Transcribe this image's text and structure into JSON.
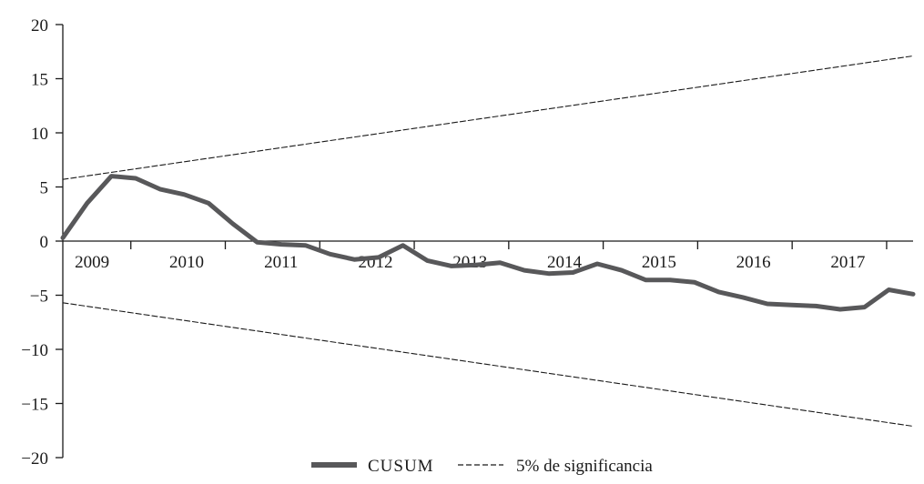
{
  "chart_data": {
    "type": "line",
    "title": "",
    "xlabel": "",
    "ylabel": "",
    "ylim": [
      -20,
      20
    ],
    "yticks": [
      20,
      15,
      10,
      5,
      0,
      -5,
      -10,
      -15,
      -20
    ],
    "ytick_labels": [
      "20",
      "15",
      "10",
      "5",
      "0",
      "−5",
      "−10",
      "−15",
      "−20"
    ],
    "categories": [
      "2009",
      "2010",
      "2011",
      "2012",
      "2013",
      "2014",
      "2015",
      "2016",
      "2017"
    ],
    "grid": false,
    "legend_position": "bottom-center",
    "series": [
      {
        "name": "CUSUM",
        "style": "solid",
        "color": "#58585a",
        "x": [
          0,
          1,
          2,
          3,
          4,
          5,
          6,
          7,
          8,
          9,
          10,
          11,
          12,
          13,
          14,
          15,
          16,
          17,
          18,
          19,
          20,
          21,
          22,
          23,
          24,
          25,
          26,
          27,
          28,
          29,
          30,
          31,
          32,
          33,
          34,
          35
        ],
        "values": [
          0.3,
          3.5,
          6.0,
          5.8,
          4.8,
          4.3,
          3.5,
          1.6,
          -0.1,
          -0.3,
          -0.4,
          -1.2,
          -1.7,
          -1.5,
          -0.4,
          -1.8,
          -2.3,
          -2.2,
          -2.0,
          -2.7,
          -3.0,
          -2.9,
          -2.1,
          -2.7,
          -3.6,
          -3.6,
          -3.8,
          -4.7,
          -5.2,
          -5.8,
          -5.9,
          -6.0,
          -6.3,
          -6.1,
          -4.5,
          -4.9
        ]
      },
      {
        "name": "5% de significancia",
        "style": "dashed",
        "color": "#1a1a1a",
        "x": [
          0,
          35
        ],
        "values": [
          5.7,
          17.1
        ]
      },
      {
        "name": "5% de significancia",
        "style": "dashed",
        "color": "#1a1a1a",
        "x": [
          0,
          35
        ],
        "values": [
          -5.7,
          -17.1
        ]
      }
    ]
  },
  "legend": {
    "cusum_label": "CUSUM",
    "band_label": "5% de significancia"
  }
}
